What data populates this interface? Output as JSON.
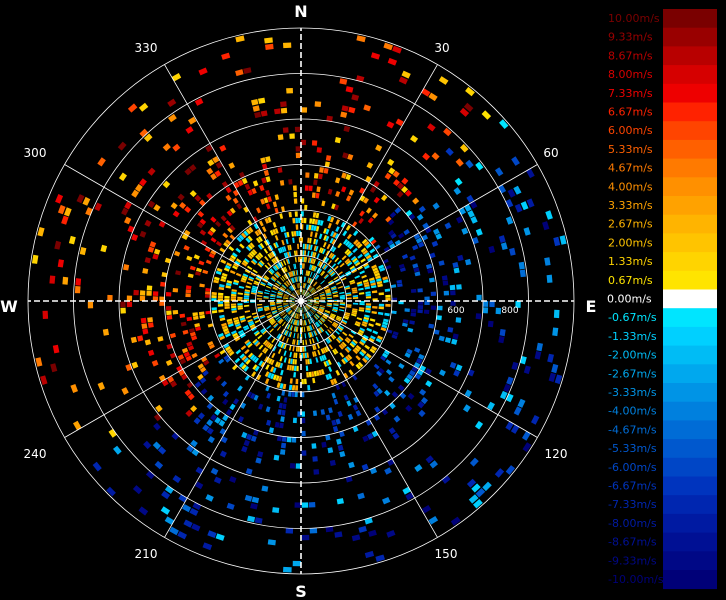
{
  "chart_data": {
    "type": "polar-radar-velocity",
    "title": "",
    "compass": {
      "north": "N",
      "east": "E",
      "south": "S",
      "west": "W"
    },
    "angle_labels": [
      "30",
      "60",
      "120",
      "150",
      "210",
      "240",
      "300",
      "330"
    ],
    "range_labels": [
      "600",
      "800"
    ],
    "range_label_direction": "E",
    "ring_count": 6,
    "spoke_angles_deg": [
      0,
      30,
      60,
      90,
      120,
      150,
      180,
      210,
      240,
      270,
      300,
      330
    ],
    "legend": {
      "unit": "m/s",
      "entries": [
        {
          "label": "10.00m/s",
          "color": "#7a0000"
        },
        {
          "label": "9.33m/s",
          "color": "#990000"
        },
        {
          "label": "8.67m/s",
          "color": "#b80000"
        },
        {
          "label": "8.00m/s",
          "color": "#d60000"
        },
        {
          "label": "7.33m/s",
          "color": "#ee0000"
        },
        {
          "label": "6.67m/s",
          "color": "#ff2200"
        },
        {
          "label": "6.00m/s",
          "color": "#ff4400"
        },
        {
          "label": "5.33m/s",
          "color": "#ff6000"
        },
        {
          "label": "4.67m/s",
          "color": "#ff7a00"
        },
        {
          "label": "4.00m/s",
          "color": "#ff9000"
        },
        {
          "label": "3.33m/s",
          "color": "#ffa200"
        },
        {
          "label": "2.67m/s",
          "color": "#ffb400"
        },
        {
          "label": "2.00m/s",
          "color": "#ffc400"
        },
        {
          "label": "1.33m/s",
          "color": "#ffd400"
        },
        {
          "label": "0.67m/s",
          "color": "#ffe400"
        },
        {
          "label": "0.00m/s",
          "color": "#ffffff"
        },
        {
          "label": "-0.67m/s",
          "color": "#00e5ff"
        },
        {
          "label": "-1.33m/s",
          "color": "#00d0ff"
        },
        {
          "label": "-2.00m/s",
          "color": "#00bcf5"
        },
        {
          "label": "-2.67m/s",
          "color": "#00a8ee"
        },
        {
          "label": "-3.33m/s",
          "color": "#0094e6"
        },
        {
          "label": "-4.00m/s",
          "color": "#0080de"
        },
        {
          "label": "-4.67m/s",
          "color": "#006cd6"
        },
        {
          "label": "-5.33m/s",
          "color": "#0058ce"
        },
        {
          "label": "-6.00m/s",
          "color": "#0046c6"
        },
        {
          "label": "-6.67m/s",
          "color": "#0034be"
        },
        {
          "label": "-7.33m/s",
          "color": "#0026b0"
        },
        {
          "label": "-8.00m/s",
          "color": "#001aa2"
        },
        {
          "label": "-8.67m/s",
          "color": "#001094"
        },
        {
          "label": "-9.33m/s",
          "color": "#000886"
        },
        {
          "label": "-10.00m/s",
          "color": "#000078"
        }
      ]
    },
    "grid": true,
    "background": "#000000"
  }
}
